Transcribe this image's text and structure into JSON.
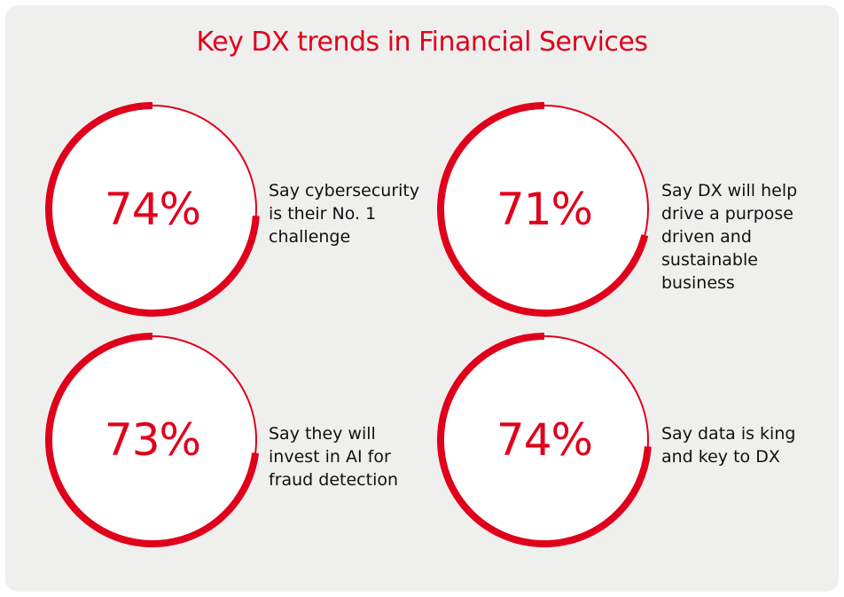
{
  "title": "Key DX trends in Financial Services",
  "colors": {
    "accent": "#e0001b",
    "panel_background": "#efefee",
    "circle_fill": "#ffffff",
    "text": "#111111"
  },
  "chart_data": {
    "type": "pie",
    "title": "Key DX trends in Financial Services",
    "unit": "%",
    "stats": [
      {
        "value": 74,
        "label": "74%",
        "description_lines": [
          "Say cybersecurity",
          "is their No. 1",
          "challenge"
        ]
      },
      {
        "value": 71,
        "label": "71%",
        "description_lines": [
          "Say DX will help",
          "drive a purpose",
          "driven and",
          "sustainable",
          "business"
        ]
      },
      {
        "value": 73,
        "label": "73%",
        "description_lines": [
          "Say they will",
          "invest in AI for",
          "fraud detection"
        ]
      },
      {
        "value": 74,
        "label": "74%",
        "description_lines": [
          "Say data is king",
          "and key to DX"
        ]
      }
    ]
  }
}
